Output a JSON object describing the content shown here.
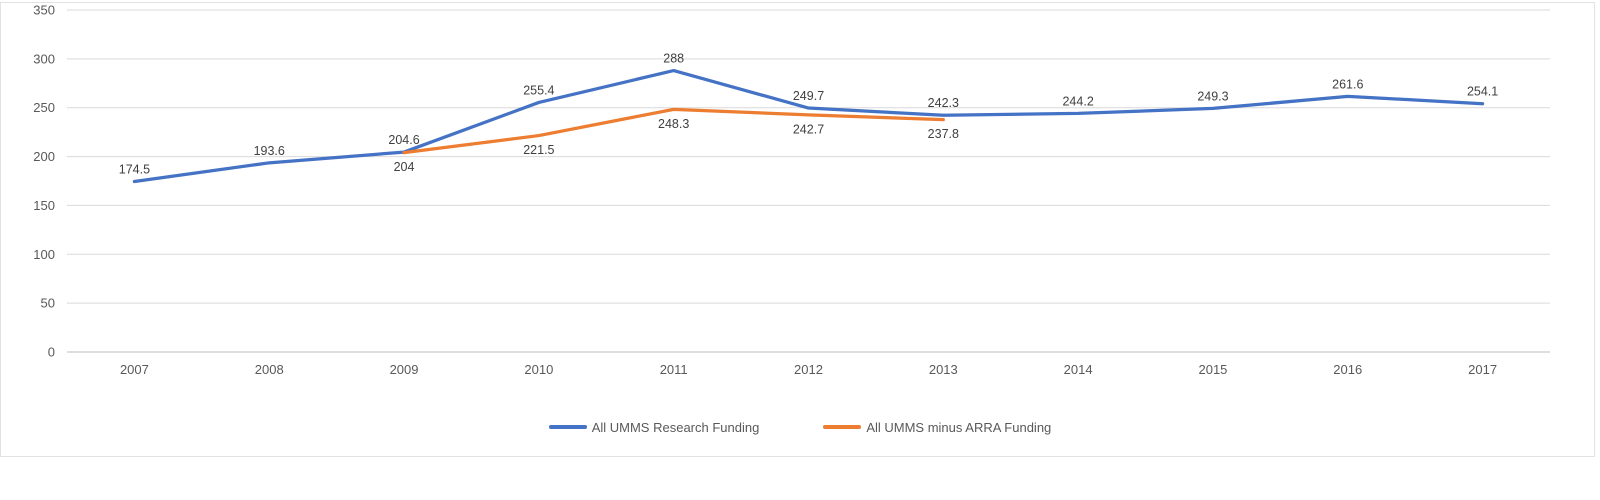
{
  "chart_data": {
    "type": "line",
    "title": "",
    "xlabel": "",
    "ylabel": "",
    "categories": [
      "2007",
      "2008",
      "2009",
      "2010",
      "2011",
      "2012",
      "2013",
      "2014",
      "2015",
      "2016",
      "2017"
    ],
    "series": [
      {
        "name": "All UMMS Research Funding",
        "color": "#4472C4",
        "values": [
          174.5,
          193.6,
          204.6,
          255.4,
          288,
          249.7,
          242.3,
          244.2,
          249.3,
          261.6,
          254.1
        ],
        "data_labels": [
          "174.5",
          "193.6",
          "204.6",
          "255.4",
          "288",
          "249.7",
          "242.3",
          "244.2",
          "249.3",
          "261.6",
          "254.1"
        ],
        "label_position": "above"
      },
      {
        "name": "All UMMS minus ARRA Funding",
        "color": "#ED7D31",
        "values": [
          null,
          null,
          204,
          221.5,
          248.3,
          242.7,
          237.8,
          null,
          null,
          null,
          null
        ],
        "data_labels": [
          null,
          null,
          "204",
          "221.5",
          "248.3",
          "242.7",
          "237.8",
          null,
          null,
          null,
          null
        ],
        "label_position": "below"
      }
    ],
    "ylim": [
      0,
      350
    ],
    "ytick_step": 50,
    "ytick_labels": [
      "0",
      "50",
      "100",
      "150",
      "200",
      "250",
      "300",
      "350"
    ],
    "grid": true,
    "legend_position": "bottom"
  },
  "colors": {
    "gridline": "#D9D9D9",
    "axis_line": "#BFBFBF",
    "axis_text": "#595959",
    "data_label_text": "#404040",
    "chart_border": "#E2E2E2",
    "background": "#FFFFFF"
  }
}
